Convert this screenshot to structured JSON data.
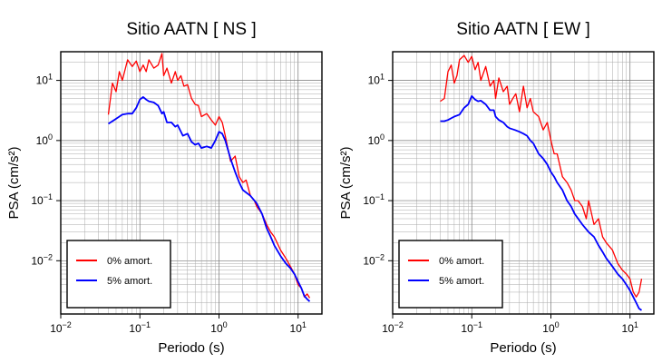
{
  "chart_data": [
    {
      "type": "line",
      "title": "Sitio AATN [ NS ]",
      "xlabel": "Periodo (s)",
      "ylabel": "PSA (cm/s²)",
      "xscale": "log",
      "yscale": "log",
      "xlim": [
        0.01,
        20
      ],
      "ylim": [
        0.0013,
        30
      ],
      "x_ticks": [
        {
          "label": "10",
          "exp": "−2"
        },
        {
          "label": "10",
          "exp": "−1"
        },
        {
          "label": "10",
          "exp": "0"
        },
        {
          "label": "10",
          "exp": "1"
        }
      ],
      "y_ticks": [
        {
          "label": "10",
          "exp": "−2"
        },
        {
          "label": "10",
          "exp": "−1"
        },
        {
          "label": "10",
          "exp": "0"
        },
        {
          "label": "10",
          "exp": "1"
        }
      ],
      "grid": true,
      "legend_position": "bottom-left",
      "series": [
        {
          "name": "0% amort.",
          "color": "#ff0000",
          "x": [
            0.04,
            0.045,
            0.05,
            0.055,
            0.06,
            0.07,
            0.08,
            0.09,
            0.1,
            0.11,
            0.12,
            0.13,
            0.15,
            0.17,
            0.19,
            0.2,
            0.22,
            0.25,
            0.28,
            0.3,
            0.33,
            0.36,
            0.4,
            0.45,
            0.5,
            0.55,
            0.6,
            0.7,
            0.8,
            0.9,
            1.0,
            1.1,
            1.2,
            1.4,
            1.6,
            1.8,
            2.0,
            2.2,
            2.5,
            2.8,
            3.0,
            3.5,
            4.0,
            4.5,
            5.0,
            6.0,
            7.0,
            8.0,
            9.0,
            10,
            11,
            12,
            13,
            14
          ],
          "values": [
            2.7,
            9.0,
            6.5,
            14,
            10,
            22,
            17,
            21,
            14,
            18,
            14,
            22,
            16,
            18,
            28,
            12,
            16,
            9,
            14,
            10,
            12,
            8,
            8.5,
            5,
            4,
            3.8,
            2.5,
            2.8,
            2.2,
            1.8,
            2.5,
            2.0,
            1.2,
            0.45,
            0.55,
            0.25,
            0.2,
            0.22,
            0.12,
            0.1,
            0.08,
            0.06,
            0.04,
            0.03,
            0.025,
            0.015,
            0.011,
            0.008,
            0.006,
            0.004,
            0.0035,
            0.0025,
            0.0028,
            0.0024
          ]
        },
        {
          "name": "5% amort.",
          "color": "#0000ff",
          "x": [
            0.04,
            0.045,
            0.05,
            0.06,
            0.07,
            0.08,
            0.09,
            0.1,
            0.11,
            0.12,
            0.13,
            0.15,
            0.17,
            0.19,
            0.2,
            0.22,
            0.25,
            0.28,
            0.3,
            0.35,
            0.4,
            0.45,
            0.5,
            0.55,
            0.6,
            0.7,
            0.8,
            0.9,
            1.0,
            1.1,
            1.2,
            1.4,
            1.6,
            1.8,
            2.0,
            2.5,
            3.0,
            3.5,
            4.0,
            4.5,
            5.0,
            6.0,
            7.0,
            8.0,
            9.0,
            10,
            11,
            12,
            13,
            14
          ],
          "values": [
            1.9,
            2.1,
            2.3,
            2.7,
            2.8,
            2.8,
            3.5,
            4.8,
            5.3,
            4.8,
            4.5,
            4.3,
            3.8,
            2.8,
            3.0,
            2.0,
            2.0,
            1.7,
            1.8,
            1.2,
            1.3,
            0.95,
            0.85,
            0.9,
            0.75,
            0.8,
            0.75,
            1.0,
            1.4,
            1.3,
            1.0,
            0.5,
            0.3,
            0.2,
            0.15,
            0.12,
            0.09,
            0.06,
            0.035,
            0.025,
            0.018,
            0.012,
            0.009,
            0.0075,
            0.006,
            0.0045,
            0.0035,
            0.0026,
            0.0023,
            0.0021
          ]
        }
      ],
      "legend": [
        {
          "label": "0% amort.",
          "color": "#ff0000"
        },
        {
          "label": "5% amort.",
          "color": "#0000ff"
        }
      ]
    },
    {
      "type": "line",
      "title": "Sitio AATN [ EW ]",
      "xlabel": "Periodo (s)",
      "ylabel": "PSA (cm/s²)",
      "xscale": "log",
      "yscale": "log",
      "xlim": [
        0.01,
        20
      ],
      "ylim": [
        0.0013,
        30
      ],
      "x_ticks": [
        {
          "label": "10",
          "exp": "−2"
        },
        {
          "label": "10",
          "exp": "−1"
        },
        {
          "label": "10",
          "exp": "0"
        },
        {
          "label": "10",
          "exp": "1"
        }
      ],
      "y_ticks": [
        {
          "label": "10",
          "exp": "−2"
        },
        {
          "label": "10",
          "exp": "−1"
        },
        {
          "label": "10",
          "exp": "0"
        },
        {
          "label": "10",
          "exp": "1"
        }
      ],
      "grid": true,
      "legend_position": "bottom-left",
      "series": [
        {
          "name": "0% amort.",
          "color": "#ff0000",
          "x": [
            0.04,
            0.045,
            0.05,
            0.055,
            0.06,
            0.065,
            0.07,
            0.08,
            0.09,
            0.1,
            0.11,
            0.12,
            0.13,
            0.15,
            0.17,
            0.19,
            0.2,
            0.22,
            0.25,
            0.28,
            0.3,
            0.33,
            0.36,
            0.4,
            0.45,
            0.5,
            0.55,
            0.6,
            0.7,
            0.8,
            0.9,
            1.0,
            1.1,
            1.2,
            1.4,
            1.6,
            1.8,
            2.0,
            2.2,
            2.5,
            2.8,
            3.0,
            3.5,
            4.0,
            4.5,
            5.0,
            6.0,
            7.0,
            8.0,
            9.0,
            10,
            11,
            12,
            13,
            14
          ],
          "values": [
            4.5,
            5.0,
            14,
            18,
            9,
            12,
            22,
            26,
            20,
            25,
            15,
            20,
            10,
            17,
            8,
            10,
            5,
            11,
            6.5,
            8,
            4,
            5,
            6,
            3,
            8,
            3.5,
            5,
            3,
            2.5,
            1.5,
            2.0,
            1.0,
            0.6,
            0.6,
            0.25,
            0.2,
            0.15,
            0.1,
            0.1,
            0.08,
            0.05,
            0.1,
            0.04,
            0.05,
            0.025,
            0.02,
            0.015,
            0.009,
            0.007,
            0.006,
            0.005,
            0.003,
            0.0025,
            0.003,
            0.005
          ]
        },
        {
          "name": "5% amort.",
          "color": "#0000ff",
          "x": [
            0.04,
            0.045,
            0.05,
            0.06,
            0.07,
            0.08,
            0.09,
            0.1,
            0.11,
            0.12,
            0.13,
            0.15,
            0.17,
            0.19,
            0.2,
            0.22,
            0.25,
            0.28,
            0.3,
            0.35,
            0.4,
            0.45,
            0.5,
            0.55,
            0.6,
            0.7,
            0.8,
            0.9,
            1.0,
            1.1,
            1.2,
            1.4,
            1.6,
            1.8,
            2.0,
            2.5,
            3.0,
            3.5,
            4.0,
            4.5,
            5.0,
            6.0,
            7.0,
            8.0,
            9.0,
            10,
            11,
            12,
            13,
            14
          ],
          "values": [
            2.1,
            2.1,
            2.2,
            2.5,
            2.7,
            3.5,
            4.0,
            5.5,
            4.8,
            4.5,
            4.6,
            4.0,
            3.2,
            3.2,
            2.5,
            2.2,
            2.0,
            1.7,
            1.6,
            1.5,
            1.4,
            1.3,
            1.2,
            1.0,
            0.9,
            0.6,
            0.5,
            0.4,
            0.3,
            0.25,
            0.2,
            0.15,
            0.1,
            0.08,
            0.06,
            0.04,
            0.03,
            0.025,
            0.018,
            0.014,
            0.011,
            0.008,
            0.006,
            0.005,
            0.004,
            0.0032,
            0.0025,
            0.002,
            0.0016,
            0.0015
          ]
        }
      ],
      "legend": [
        {
          "label": "0% amort.",
          "color": "#ff0000"
        },
        {
          "label": "5% amort.",
          "color": "#0000ff"
        }
      ]
    }
  ]
}
